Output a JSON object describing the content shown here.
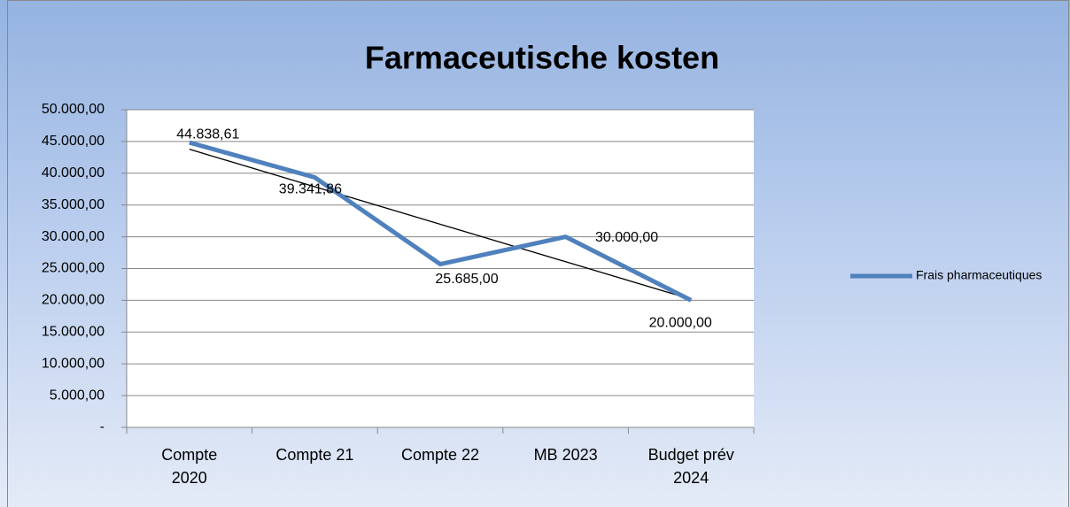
{
  "chart_data": {
    "type": "line",
    "title": "Farmaceutische kosten",
    "categories": [
      "Compte 2020",
      "Compte 21",
      "Compte 22",
      "MB 2023",
      "Budget prév 2024"
    ],
    "series": [
      {
        "name": "Frais pharmaceutiques",
        "color": "#4f81bd",
        "values": [
          44838.61,
          39341.86,
          25685,
          30000,
          20000
        ],
        "value_labels": [
          "44.838,61",
          "39.341,86",
          "25.685,00",
          "30.000,00",
          "20.000,00"
        ]
      }
    ],
    "trendline": true,
    "ylim": [
      0,
      50000
    ],
    "yticks": [
      {
        "value": 0,
        "label": "-"
      },
      {
        "value": 5000,
        "label": "5.000,00"
      },
      {
        "value": 10000,
        "label": "10.000,00"
      },
      {
        "value": 15000,
        "label": "15.000,00"
      },
      {
        "value": 20000,
        "label": "20.000,00"
      },
      {
        "value": 25000,
        "label": "25.000,00"
      },
      {
        "value": 30000,
        "label": "30.000,00"
      },
      {
        "value": 35000,
        "label": "35.000,00"
      },
      {
        "value": 40000,
        "label": "40.000,00"
      },
      {
        "value": 45000,
        "label": "45.000,00"
      },
      {
        "value": 50000,
        "label": "50.000,00"
      }
    ],
    "grid": true,
    "legend": "right"
  }
}
